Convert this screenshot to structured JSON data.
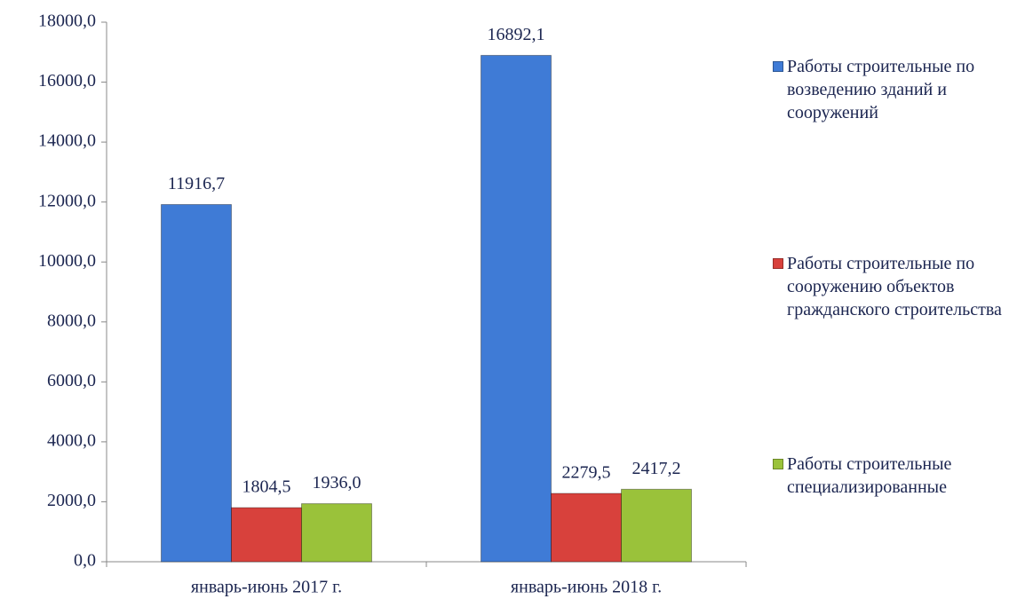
{
  "chart_data": {
    "type": "bar",
    "categories": [
      "январь-июнь 2017 г.",
      "январь-июнь 2018 г."
    ],
    "series": [
      {
        "name": "Работы строительные по возведению зданий и сооружений",
        "color": "#3f7bd6",
        "values": [
          11916.7,
          16892.1
        ],
        "value_labels": [
          "11916,7",
          "16892,1"
        ]
      },
      {
        "name": "Работы строительные по сооружению объектов гражданского строительства",
        "color": "#d8413c",
        "values": [
          1804.5,
          2279.5
        ],
        "value_labels": [
          "1804,5",
          "2279,5"
        ]
      },
      {
        "name": "Работы строительные специализированные",
        "color": "#9ac23a",
        "values": [
          1936.0,
          2417.2
        ],
        "value_labels": [
          "1936,0",
          "2417,2"
        ]
      }
    ],
    "ylim": [
      0,
      18000
    ],
    "yticks": [
      {
        "value": 0,
        "label": "0,0"
      },
      {
        "value": 2000,
        "label": "2000,0"
      },
      {
        "value": 4000,
        "label": "4000,0"
      },
      {
        "value": 6000,
        "label": "6000,0"
      },
      {
        "value": 8000,
        "label": "8000,0"
      },
      {
        "value": 10000,
        "label": "10000,0"
      },
      {
        "value": 12000,
        "label": "12000,0"
      },
      {
        "value": 14000,
        "label": "14000,0"
      },
      {
        "value": 16000,
        "label": "16000,0"
      },
      {
        "value": 18000,
        "label": "18000,0"
      }
    ],
    "grid": false,
    "legend": "right"
  }
}
